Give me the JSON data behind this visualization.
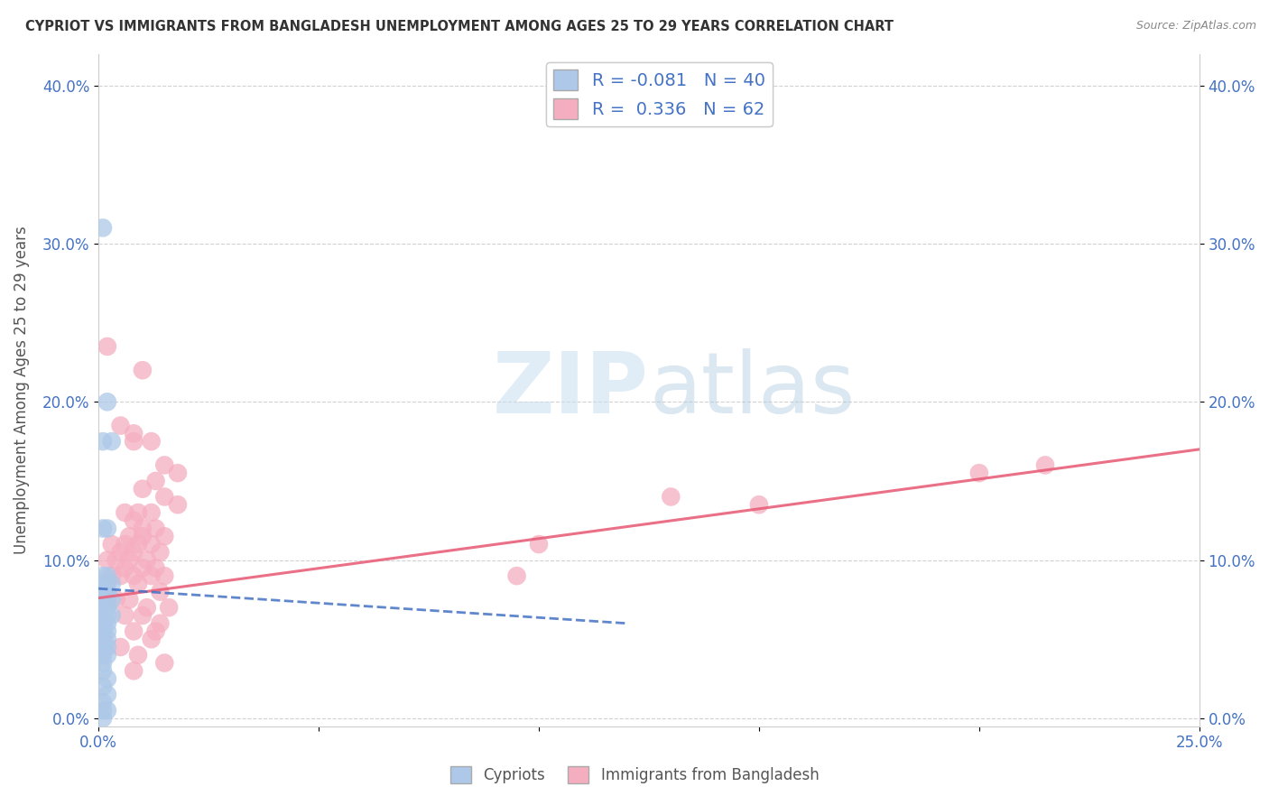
{
  "title": "CYPRIOT VS IMMIGRANTS FROM BANGLADESH UNEMPLOYMENT AMONG AGES 25 TO 29 YEARS CORRELATION CHART",
  "source": "Source: ZipAtlas.com",
  "ylabel": "Unemployment Among Ages 25 to 29 years",
  "xlim": [
    0,
    0.25
  ],
  "ylim": [
    -0.005,
    0.42
  ],
  "xticks": [
    0.0,
    0.05,
    0.1,
    0.15,
    0.2,
    0.25
  ],
  "yticks": [
    0.0,
    0.1,
    0.2,
    0.3,
    0.4
  ],
  "xtick_labels": [
    "0.0%",
    "",
    "",
    "",
    "",
    "25.0%"
  ],
  "ytick_labels": [
    "0.0%",
    "10.0%",
    "20.0%",
    "30.0%",
    "40.0%"
  ],
  "cypriot_color": "#adc8e8",
  "bangladesh_color": "#f5aec0",
  "cypriot_line_color": "#4472c4",
  "bangladesh_line_color": "#e8607a",
  "R_cypriot": -0.081,
  "N_cypriot": 40,
  "R_bangladesh": 0.336,
  "N_bangladesh": 62,
  "background_color": "#ffffff",
  "grid_color": "#cccccc",
  "cypriot_scatter": [
    [
      0.001,
      0.31
    ],
    [
      0.002,
      0.2
    ],
    [
      0.001,
      0.175
    ],
    [
      0.003,
      0.175
    ],
    [
      0.001,
      0.12
    ],
    [
      0.002,
      0.12
    ],
    [
      0.001,
      0.09
    ],
    [
      0.002,
      0.09
    ],
    [
      0.001,
      0.085
    ],
    [
      0.002,
      0.085
    ],
    [
      0.003,
      0.085
    ],
    [
      0.001,
      0.08
    ],
    [
      0.002,
      0.08
    ],
    [
      0.001,
      0.075
    ],
    [
      0.002,
      0.075
    ],
    [
      0.003,
      0.075
    ],
    [
      0.001,
      0.07
    ],
    [
      0.002,
      0.07
    ],
    [
      0.001,
      0.065
    ],
    [
      0.002,
      0.065
    ],
    [
      0.003,
      0.065
    ],
    [
      0.001,
      0.06
    ],
    [
      0.002,
      0.06
    ],
    [
      0.001,
      0.055
    ],
    [
      0.002,
      0.055
    ],
    [
      0.001,
      0.05
    ],
    [
      0.002,
      0.05
    ],
    [
      0.001,
      0.045
    ],
    [
      0.002,
      0.045
    ],
    [
      0.001,
      0.04
    ],
    [
      0.002,
      0.04
    ],
    [
      0.001,
      0.035
    ],
    [
      0.001,
      0.03
    ],
    [
      0.002,
      0.025
    ],
    [
      0.001,
      0.02
    ],
    [
      0.002,
      0.015
    ],
    [
      0.001,
      0.01
    ],
    [
      0.001,
      0.005
    ],
    [
      0.002,
      0.005
    ],
    [
      0.001,
      0.0
    ]
  ],
  "bangladesh_scatter": [
    [
      0.002,
      0.235
    ],
    [
      0.01,
      0.22
    ],
    [
      0.005,
      0.185
    ],
    [
      0.008,
      0.18
    ],
    [
      0.008,
      0.175
    ],
    [
      0.012,
      0.175
    ],
    [
      0.015,
      0.16
    ],
    [
      0.018,
      0.155
    ],
    [
      0.013,
      0.15
    ],
    [
      0.01,
      0.145
    ],
    [
      0.015,
      0.14
    ],
    [
      0.018,
      0.135
    ],
    [
      0.006,
      0.13
    ],
    [
      0.009,
      0.13
    ],
    [
      0.012,
      0.13
    ],
    [
      0.008,
      0.125
    ],
    [
      0.01,
      0.12
    ],
    [
      0.013,
      0.12
    ],
    [
      0.007,
      0.115
    ],
    [
      0.01,
      0.115
    ],
    [
      0.015,
      0.115
    ],
    [
      0.003,
      0.11
    ],
    [
      0.006,
      0.11
    ],
    [
      0.009,
      0.11
    ],
    [
      0.012,
      0.11
    ],
    [
      0.005,
      0.105
    ],
    [
      0.008,
      0.105
    ],
    [
      0.014,
      0.105
    ],
    [
      0.002,
      0.1
    ],
    [
      0.004,
      0.1
    ],
    [
      0.007,
      0.1
    ],
    [
      0.011,
      0.1
    ],
    [
      0.006,
      0.095
    ],
    [
      0.01,
      0.095
    ],
    [
      0.013,
      0.095
    ],
    [
      0.003,
      0.09
    ],
    [
      0.005,
      0.09
    ],
    [
      0.008,
      0.09
    ],
    [
      0.012,
      0.09
    ],
    [
      0.015,
      0.09
    ],
    [
      0.009,
      0.085
    ],
    [
      0.014,
      0.08
    ],
    [
      0.004,
      0.075
    ],
    [
      0.007,
      0.075
    ],
    [
      0.011,
      0.07
    ],
    [
      0.016,
      0.07
    ],
    [
      0.006,
      0.065
    ],
    [
      0.01,
      0.065
    ],
    [
      0.014,
      0.06
    ],
    [
      0.008,
      0.055
    ],
    [
      0.013,
      0.055
    ],
    [
      0.012,
      0.05
    ],
    [
      0.005,
      0.045
    ],
    [
      0.009,
      0.04
    ],
    [
      0.015,
      0.035
    ],
    [
      0.008,
      0.03
    ],
    [
      0.1,
      0.11
    ],
    [
      0.13,
      0.14
    ],
    [
      0.15,
      0.135
    ],
    [
      0.2,
      0.155
    ],
    [
      0.215,
      0.16
    ],
    [
      0.095,
      0.09
    ]
  ],
  "bangladesh_line_x": [
    0.0,
    0.25
  ],
  "bangladesh_line_y": [
    0.076,
    0.17
  ],
  "cypriot_line_x": [
    0.0,
    0.12
  ],
  "cypriot_line_y": [
    0.082,
    0.06
  ]
}
